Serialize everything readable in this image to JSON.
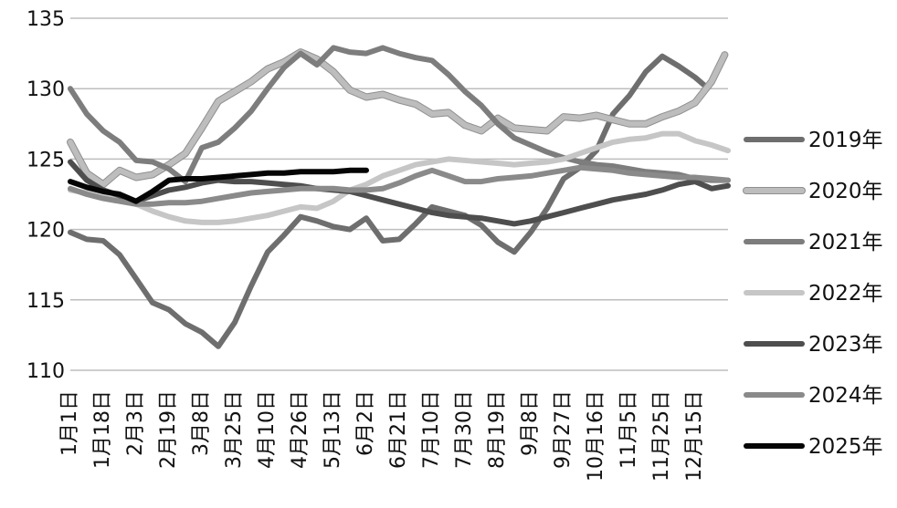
{
  "chart_data": {
    "type": "line",
    "title": "",
    "xlabel": "",
    "ylabel": "",
    "ylim": [
      110,
      135
    ],
    "yticks": [
      110,
      115,
      120,
      125,
      130,
      135
    ],
    "grid": "horizontal",
    "legend_position": "right",
    "categories": [
      "1月1日",
      "1月18日",
      "2月3日",
      "2月19日",
      "3月8日",
      "3月25日",
      "4月10日",
      "4月26日",
      "5月13日",
      "6月2日",
      "6月21日",
      "7月10日",
      "7月30日",
      "8月19日",
      "9月8日",
      "9月27日",
      "10月16日",
      "11月5日",
      "11月25日",
      "12月15日"
    ],
    "series": [
      {
        "name": "2019年",
        "color": "#6e6e6e",
        "width": 6,
        "x": [
          0,
          0.5,
          1,
          1.5,
          2,
          2.5,
          3,
          3.5,
          4,
          4.5,
          5,
          5.5,
          6,
          6.5,
          7,
          7.5,
          8,
          8.5,
          9,
          9.5,
          10,
          10.5,
          11,
          11.5,
          12,
          12.5,
          13,
          13.5,
          14,
          14.5,
          15,
          15.5,
          16,
          16.5,
          17,
          17.5,
          18,
          18.5,
          19,
          19.3
        ],
        "values": [
          119.8,
          119.3,
          119.2,
          118.2,
          116.5,
          114.8,
          114.3,
          113.3,
          112.7,
          111.7,
          113.4,
          116,
          118.4,
          119.6,
          120.9,
          120.6,
          120.2,
          120.0,
          120.8,
          119.2,
          119.3,
          120.4,
          121.6,
          121.3,
          121.0,
          120.3,
          119.1,
          118.4,
          119.8,
          121.5,
          123.6,
          124.4,
          125.6,
          128.2,
          129.5,
          131.2,
          132.3,
          131.6,
          130.8,
          130.2
        ]
      },
      {
        "name": "2020年",
        "color": "#bdbdbd",
        "width": 6,
        "outline": true,
        "x": [
          0,
          0.5,
          1,
          1.5,
          2,
          2.5,
          3,
          3.5,
          4,
          4.5,
          5,
          5.5,
          6,
          6.5,
          7,
          7.5,
          8,
          8.5,
          9,
          9.5,
          10,
          10.5,
          11,
          11.5,
          12,
          12.5,
          13,
          13.5,
          14,
          14.5,
          15,
          15.5,
          16,
          16.5,
          17,
          17.5,
          18,
          18.5,
          19,
          19.5,
          19.9
        ],
        "values": [
          126.2,
          124.0,
          123.2,
          124.2,
          123.7,
          123.9,
          124.6,
          125.4,
          127.2,
          129.1,
          129.8,
          130.5,
          131.4,
          131.9,
          132.6,
          132.1,
          131.2,
          129.9,
          129.4,
          129.6,
          129.2,
          128.9,
          128.2,
          128.3,
          127.4,
          127.0,
          127.9,
          127.2,
          127.1,
          127.0,
          128.0,
          127.9,
          128.1,
          127.8,
          127.5,
          127.5,
          128.0,
          128.4,
          129.0,
          130.5,
          132.4
        ]
      },
      {
        "name": "2021年",
        "color": "#7d7d7d",
        "width": 6,
        "x": [
          0,
          0.5,
          1,
          1.5,
          2,
          2.5,
          3,
          3.5,
          4,
          4.5,
          5,
          5.5,
          6,
          6.5,
          7,
          7.5,
          8,
          8.5,
          9,
          9.5,
          10,
          10.5,
          11,
          11.5,
          12,
          12.5,
          13,
          13.5,
          14,
          14.5,
          15,
          15.5,
          16,
          16.5,
          17,
          17.5,
          18,
          18.5,
          19,
          19.5,
          20
        ],
        "values": [
          130.0,
          128.2,
          127.0,
          126.2,
          124.9,
          124.8,
          124.3,
          123.4,
          125.8,
          126.2,
          127.2,
          128.4,
          130.0,
          131.5,
          132.5,
          131.7,
          132.9,
          132.6,
          132.5,
          132.9,
          132.5,
          132.2,
          132.0,
          131.0,
          129.8,
          128.8,
          127.5,
          126.5,
          126.0,
          125.5,
          125.1,
          124.8,
          124.6,
          124.5,
          124.3,
          124.1,
          124.0,
          123.9,
          123.6,
          123.5,
          123.5
        ]
      },
      {
        "name": "2022年",
        "color": "#c6c6c6",
        "width": 6,
        "x": [
          0,
          0.5,
          1,
          1.5,
          2,
          2.5,
          3,
          3.5,
          4,
          4.5,
          5,
          5.5,
          6,
          6.5,
          7,
          7.5,
          8,
          8.5,
          9,
          9.5,
          10,
          10.5,
          11,
          11.5,
          12,
          12.5,
          13,
          13.5,
          14,
          14.5,
          15,
          15.5,
          16,
          16.5,
          17,
          17.5,
          18,
          18.5,
          19,
          19.5,
          20
        ],
        "values": [
          122.8,
          122.6,
          122.4,
          122.2,
          121.8,
          121.3,
          120.9,
          120.6,
          120.5,
          120.5,
          120.6,
          120.8,
          121.0,
          121.3,
          121.6,
          121.5,
          122.0,
          122.8,
          123.2,
          123.8,
          124.2,
          124.6,
          124.8,
          125.0,
          124.9,
          124.8,
          124.7,
          124.6,
          124.7,
          124.8,
          125.0,
          125.4,
          125.8,
          126.2,
          126.4,
          126.5,
          126.8,
          126.8,
          126.3,
          126.0,
          125.6
        ]
      },
      {
        "name": "2023年",
        "color": "#4e4e4e",
        "width": 6,
        "x": [
          0,
          0.5,
          1,
          1.5,
          2,
          2.5,
          3,
          3.5,
          4,
          4.5,
          5,
          5.5,
          6,
          6.5,
          7,
          7.5,
          8,
          8.5,
          9,
          9.5,
          10,
          10.5,
          11,
          11.5,
          12,
          12.5,
          13,
          13.5,
          14,
          14.5,
          15,
          15.5,
          16,
          16.5,
          17,
          17.5,
          18,
          18.5,
          19,
          19.5,
          20
        ],
        "values": [
          124.8,
          123.5,
          122.8,
          122.4,
          122.0,
          122.4,
          122.8,
          123.0,
          123.3,
          123.5,
          123.4,
          123.4,
          123.3,
          123.2,
          123.1,
          122.9,
          122.8,
          122.7,
          122.4,
          122.1,
          121.8,
          121.5,
          121.2,
          121.0,
          120.9,
          120.8,
          120.6,
          120.4,
          120.6,
          120.9,
          121.2,
          121.5,
          121.8,
          122.1,
          122.3,
          122.5,
          122.8,
          123.2,
          123.4,
          122.9,
          123.1
        ]
      },
      {
        "name": "2024年",
        "color": "#8a8a8a",
        "width": 6,
        "x": [
          0,
          0.5,
          1,
          1.5,
          2,
          2.5,
          3,
          3.5,
          4,
          4.5,
          5,
          5.5,
          6,
          6.5,
          7,
          7.5,
          8,
          8.5,
          9,
          9.5,
          10,
          10.5,
          11,
          11.5,
          12,
          12.5,
          13,
          13.5,
          14,
          14.5,
          15,
          15.5,
          16,
          16.5,
          17,
          17.5,
          18,
          18.5,
          19,
          19.5,
          20
        ],
        "values": [
          122.9,
          122.5,
          122.2,
          122.0,
          121.8,
          121.8,
          121.9,
          121.9,
          122.0,
          122.2,
          122.4,
          122.6,
          122.7,
          122.8,
          122.9,
          122.9,
          122.9,
          122.8,
          122.8,
          122.9,
          123.3,
          123.8,
          124.2,
          123.8,
          123.4,
          123.4,
          123.6,
          123.7,
          123.8,
          124.0,
          124.2,
          124.4,
          124.3,
          124.2,
          124.0,
          123.9,
          123.8,
          123.7,
          123.7,
          123.6,
          123.5
        ]
      },
      {
        "name": "2025年",
        "color": "#050505",
        "width": 6,
        "x": [
          0,
          0.5,
          1,
          1.5,
          2,
          2.5,
          3,
          3.5,
          4,
          4.5,
          5,
          5.5,
          6,
          6.5,
          7,
          7.5,
          8,
          8.5,
          9
        ],
        "values": [
          123.4,
          123.0,
          122.7,
          122.5,
          122.0,
          122.7,
          123.5,
          123.6,
          123.6,
          123.7,
          123.8,
          123.9,
          124.0,
          124.0,
          124.1,
          124.1,
          124.1,
          124.2,
          124.2
        ]
      }
    ]
  }
}
